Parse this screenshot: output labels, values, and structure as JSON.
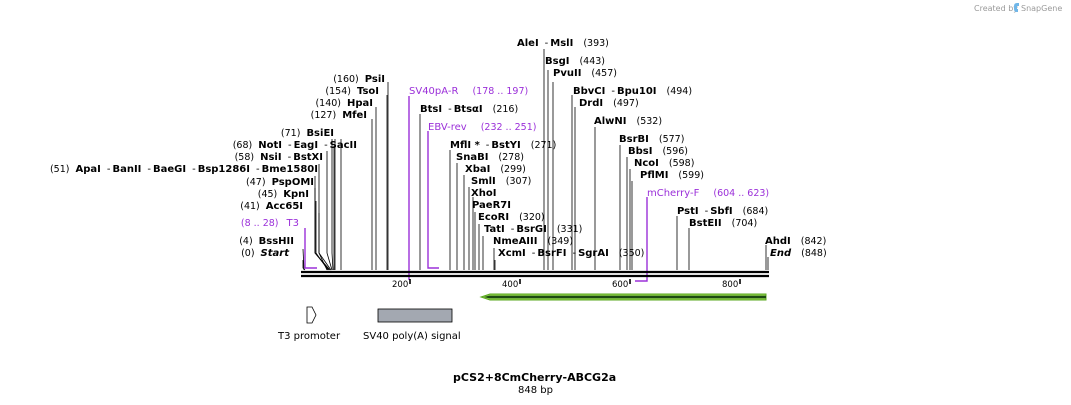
{
  "credit": {
    "text": "Created by",
    "brand": "SnapGene"
  },
  "plasmid": {
    "name": "pCS2+8CmCherry-ABCG2a",
    "length": "848 bp"
  },
  "enzymes": {
    "alei": {
      "name": "AleI",
      "sep": "-",
      "name2": "MslI",
      "pos": "(393)"
    },
    "bsgi": {
      "name": "BsgI",
      "pos": "(443)"
    },
    "pvuii": {
      "name": "PvuII",
      "pos": "(457)"
    },
    "bbvci": {
      "name": "BbvCI",
      "sep": "-",
      "name2": "Bpu10I",
      "pos": "(494)"
    },
    "drdi": {
      "name": "DrdI",
      "pos": "(497)"
    },
    "alwni": {
      "name": "AlwNI",
      "pos": "(532)"
    },
    "bsrbi": {
      "name": "BsrBI",
      "pos": "(577)"
    },
    "bbsi": {
      "name": "BbsI",
      "pos": "(596)"
    },
    "ncoi": {
      "name": "NcoI",
      "pos": "(598)"
    },
    "pflmi": {
      "name": "PflMI",
      "pos": "(599)"
    },
    "psti": {
      "name": "PstI",
      "sep": "-",
      "name2": "SbfI",
      "pos": "(684)"
    },
    "bsteii": {
      "name": "BstEII",
      "pos": "(704)"
    },
    "ahdi": {
      "name": "AhdI",
      "pos": "(842)"
    },
    "end": {
      "name": "End",
      "pos": "(848)"
    },
    "psii": {
      "pos": "(160)",
      "name": "PsiI"
    },
    "tsoi": {
      "pos": "(154)",
      "name": "TsoI"
    },
    "hpai": {
      "pos": "(140)",
      "name": "HpaI"
    },
    "mfei": {
      "pos": "(127)",
      "name": "MfeI"
    },
    "bsiei": {
      "pos": "(71)",
      "name": "BsiEI"
    },
    "noti": {
      "pos": "(68)",
      "name": "NotI",
      "sep": "-",
      "name2": "EagI",
      "sep2": "-",
      "name3": "SacII"
    },
    "nsii": {
      "pos": "(58)",
      "name": "NsiI",
      "sep": "-",
      "name2": "BstXI"
    },
    "apai": {
      "pos": "(51)",
      "name": "ApaI",
      "sep": "-",
      "name2": "BanII",
      "sep2": "-",
      "name3": "BaeGI",
      "sep3": "-",
      "name4": "Bsp1286I",
      "sep4": "-",
      "name5": "Bme1580I"
    },
    "pspomi": {
      "pos": "(47)",
      "name": "PspOMI"
    },
    "kpni": {
      "pos": "(45)",
      "name": "KpnI"
    },
    "acc65i": {
      "pos": "(41)",
      "name": "Acc65I"
    },
    "bsshii": {
      "pos": "(4)",
      "name": "BssHII"
    },
    "start": {
      "pos": "(0)",
      "name": "Start"
    },
    "btsi": {
      "name": "BtsI",
      "sep": "-",
      "name2": "BtsαI",
      "pos": "(216)"
    },
    "mfli": {
      "name": "MflI *",
      "sep": "-",
      "name2": "BstYI",
      "pos": "(271)"
    },
    "snabi": {
      "name": "SnaBI",
      "pos": "(278)"
    },
    "xbai": {
      "name": "XbaI",
      "pos": "(299)"
    },
    "smli": {
      "name": "SmlI",
      "pos": "(307)"
    },
    "xhoi": {
      "name": "XhoI"
    },
    "paer7i": {
      "name": "PaeR7I"
    },
    "ecori": {
      "name": "EcoRI",
      "pos": "(320)"
    },
    "tati": {
      "name": "TatI",
      "sep": "-",
      "name2": "BsrGI",
      "pos": "(331)"
    },
    "nmeaiii": {
      "name": "NmeAIII",
      "pos": "(349)"
    },
    "xcmi": {
      "name": "XcmI",
      "sep": "-",
      "name2": "BsrFI",
      "sep2": "-",
      "name3": "SgrAI",
      "pos": "(350)"
    }
  },
  "primers": {
    "sv40pa_r": {
      "name": "SV40pA-R",
      "range": "(178 .. 197)"
    },
    "ebv_rev": {
      "name": "EBV-rev",
      "range": "(232 .. 251)"
    },
    "mcherry_f": {
      "name": "mCherry-F",
      "range": "(604 .. 623)"
    },
    "t3": {
      "name": "T3",
      "range": "(8 .. 28)"
    }
  },
  "features": {
    "t3_promoter": {
      "label": "T3 promoter"
    },
    "sv40_polya": {
      "label": "SV40 poly(A) signal"
    }
  },
  "ruler": {
    "ticks": [
      "200",
      "400",
      "600",
      "800"
    ]
  },
  "colors": {
    "primer": "#9b30d9",
    "orf_fill": "#8fd24a",
    "orf_stroke": "#5aa71f",
    "polya_fill": "#a3a8b1"
  }
}
